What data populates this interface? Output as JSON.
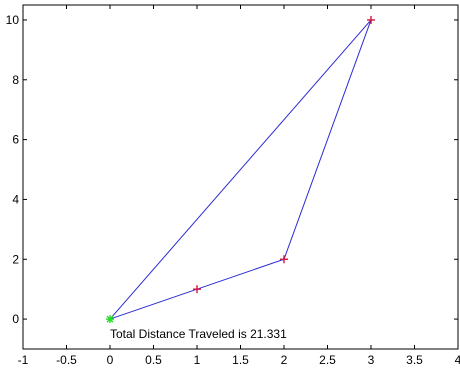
{
  "chart_data": {
    "type": "line",
    "title": "",
    "xlabel": "",
    "ylabel": "",
    "xlim": [
      -1,
      4
    ],
    "ylim": [
      -1,
      10.5
    ],
    "xticks": [
      -1,
      -0.5,
      0,
      0.5,
      1,
      1.5,
      2,
      2.5,
      3,
      3.5,
      4
    ],
    "xtick_labels": [
      "-1",
      "-0.5",
      "0",
      "0.5",
      "1",
      "1.5",
      "2",
      "2.5",
      "3",
      "3.5",
      "4"
    ],
    "yticks": [
      0,
      2,
      4,
      6,
      8,
      10
    ],
    "ytick_labels": [
      "0",
      "2",
      "4",
      "6",
      "8",
      "10"
    ],
    "grid": false,
    "series": [
      {
        "x": [
          0,
          1,
          2,
          3,
          0
        ],
        "y": [
          0,
          1,
          2,
          10,
          0
        ],
        "color": "#2b2bd6"
      }
    ],
    "points": [
      {
        "x": 1,
        "y": 1,
        "marker": "plus",
        "color": "#d4143c"
      },
      {
        "x": 2,
        "y": 2,
        "marker": "plus",
        "color": "#d4143c"
      },
      {
        "x": 3,
        "y": 10,
        "marker": "plus",
        "color": "#d4143c"
      },
      {
        "x": 0,
        "y": 0,
        "marker": "asterisk",
        "color": "#22dd22"
      }
    ],
    "annotation": {
      "text": "Total Distance Traveled is 21.331",
      "x": 0,
      "y": -0.5
    }
  }
}
